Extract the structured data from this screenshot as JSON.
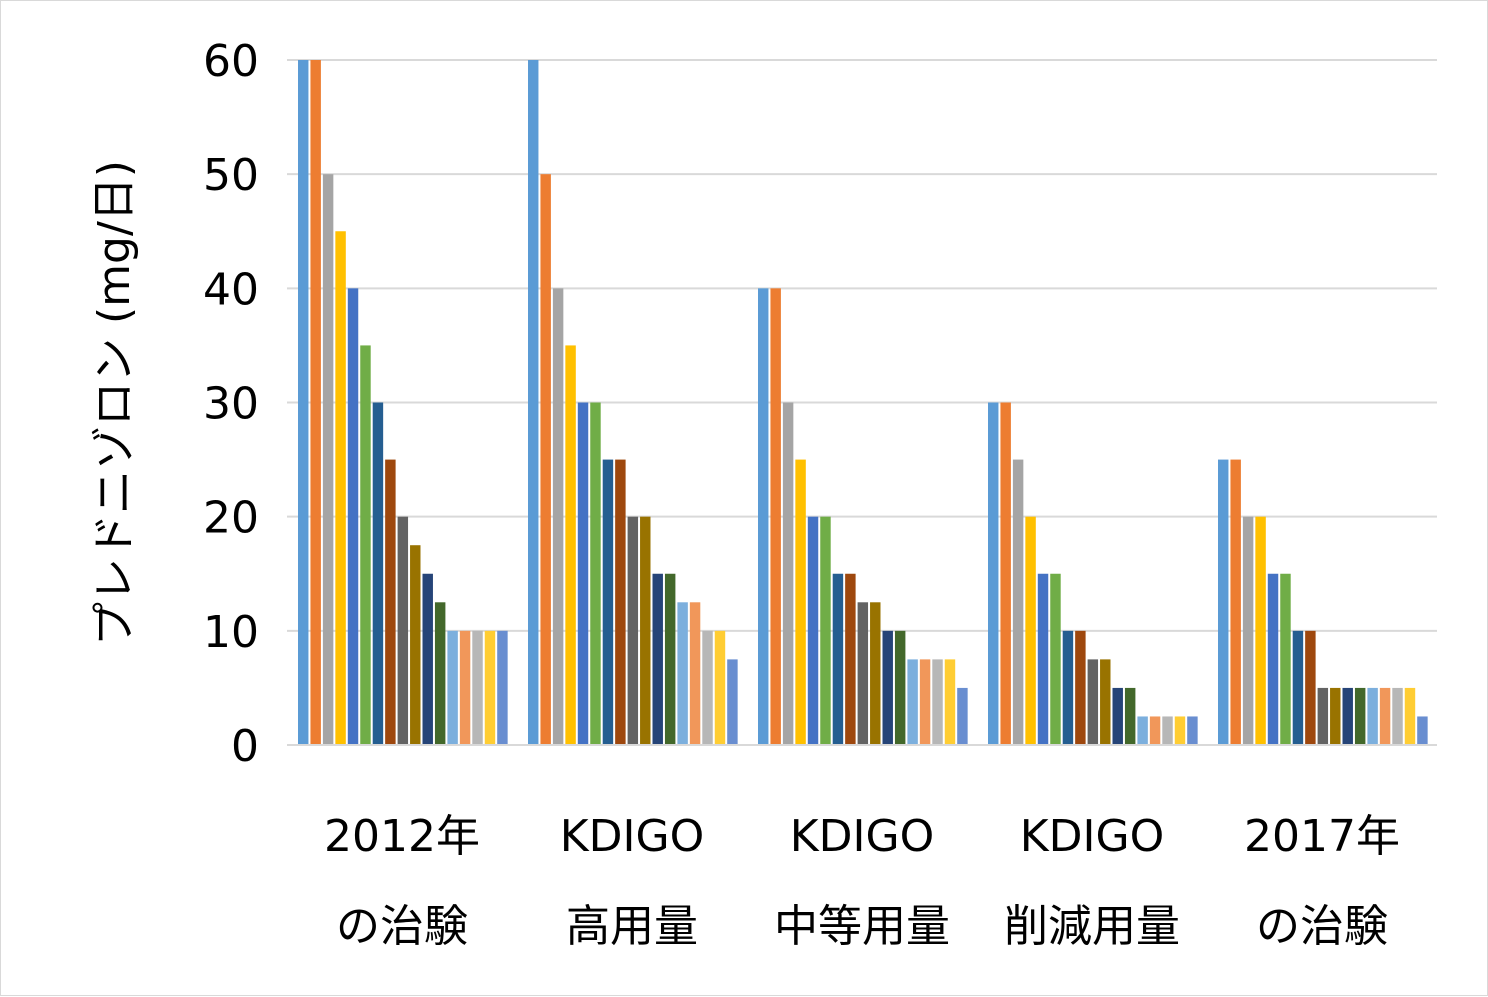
{
  "chart_data": {
    "type": "bar",
    "title": "",
    "xlabel": "",
    "ylabel": "プレドニゾロン (mg/日)",
    "ylim": [
      0,
      60
    ],
    "yticks": [
      0,
      10,
      20,
      30,
      40,
      50,
      60
    ],
    "grid": true,
    "legend": "none",
    "categories": [
      [
        "2012年",
        "の治験"
      ],
      [
        "KDIGO",
        "高用量"
      ],
      [
        "KDIGO",
        "中等用量"
      ],
      [
        "KDIGO",
        "削減用量"
      ],
      [
        "2017年",
        "の治験"
      ]
    ],
    "palette": [
      "#5b9bd5",
      "#ed7d31",
      "#a5a5a5",
      "#ffc000",
      "#4472c4",
      "#70ad47",
      "#255e91",
      "#9e480e",
      "#636363",
      "#997300",
      "#264478",
      "#43682b",
      "#7cafdd",
      "#f1975a",
      "#b7b7b7",
      "#ffcd33",
      "#698ed0"
    ],
    "groups": [
      [
        60,
        60,
        50,
        45,
        40,
        35,
        30,
        25,
        20,
        17.5,
        15,
        12.5,
        10,
        10,
        10,
        10,
        10
      ],
      [
        60,
        50,
        40,
        35,
        30,
        30,
        25,
        25,
        20,
        20,
        15,
        15,
        12.5,
        12.5,
        10,
        10,
        7.5
      ],
      [
        40,
        40,
        30,
        25,
        20,
        20,
        15,
        15,
        12.5,
        12.5,
        10,
        10,
        7.5,
        7.5,
        7.5,
        7.5,
        5
      ],
      [
        30,
        30,
        25,
        20,
        15,
        15,
        10,
        10,
        7.5,
        7.5,
        5,
        5,
        2.5,
        2.5,
        2.5,
        2.5,
        2.5
      ],
      [
        25,
        25,
        20,
        20,
        15,
        15,
        10,
        10,
        5,
        5,
        5,
        5,
        5,
        5,
        5,
        5,
        2.5
      ]
    ]
  }
}
